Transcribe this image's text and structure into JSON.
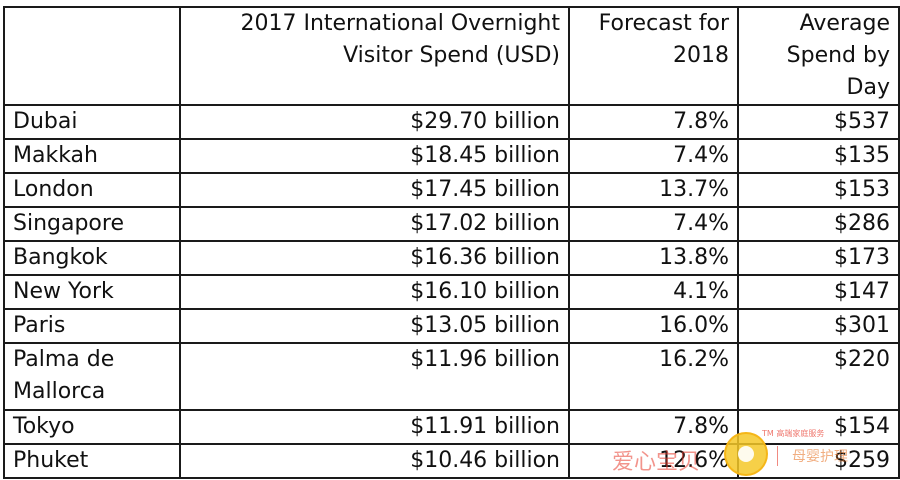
{
  "table": {
    "headers": {
      "city": "",
      "spend": [
        "2017 International Overnight",
        "Visitor Spend (USD)"
      ],
      "forecast": [
        "Forecast for",
        "2018"
      ],
      "day": [
        "Average",
        "Spend by",
        "Day"
      ]
    },
    "rows": [
      {
        "city": "Dubai",
        "spend": "$29.70 billion",
        "forecast": "7.8%",
        "day": "$537"
      },
      {
        "city": "Makkah",
        "spend": "$18.45 billion",
        "forecast": "7.4%",
        "day": "$135"
      },
      {
        "city": "London",
        "spend": "$17.45 billion",
        "forecast": "13.7%",
        "day": "$153"
      },
      {
        "city": "Singapore",
        "spend": "$17.02 billion",
        "forecast": "7.4%",
        "day": "$286"
      },
      {
        "city": "Bangkok",
        "spend": "$16.36 billion",
        "forecast": "13.8%",
        "day": "$173"
      },
      {
        "city": "New York",
        "spend": "$16.10 billion",
        "forecast": "4.1%",
        "day": "$147"
      },
      {
        "city": "Paris",
        "spend": "$13.05 billion",
        "forecast": "16.0%",
        "day": "$301"
      },
      {
        "city": "Palma de Mallorca",
        "spend": "$11.96 billion",
        "forecast": "16.2%",
        "day": "$220"
      },
      {
        "city": "Tokyo",
        "spend": "$11.91 billion",
        "forecast": "7.8%",
        "day": "$154"
      },
      {
        "city": "Phuket",
        "spend": "$10.46 billion",
        "forecast": "12.6%",
        "day": "$259"
      }
    ]
  },
  "watermark": {
    "text": "爱心宝贝",
    "tagline": "TM 高端家庭服务",
    "brand": "母婴护理",
    "logo_color": "#f5c828",
    "text_color": "#e83c2d"
  }
}
